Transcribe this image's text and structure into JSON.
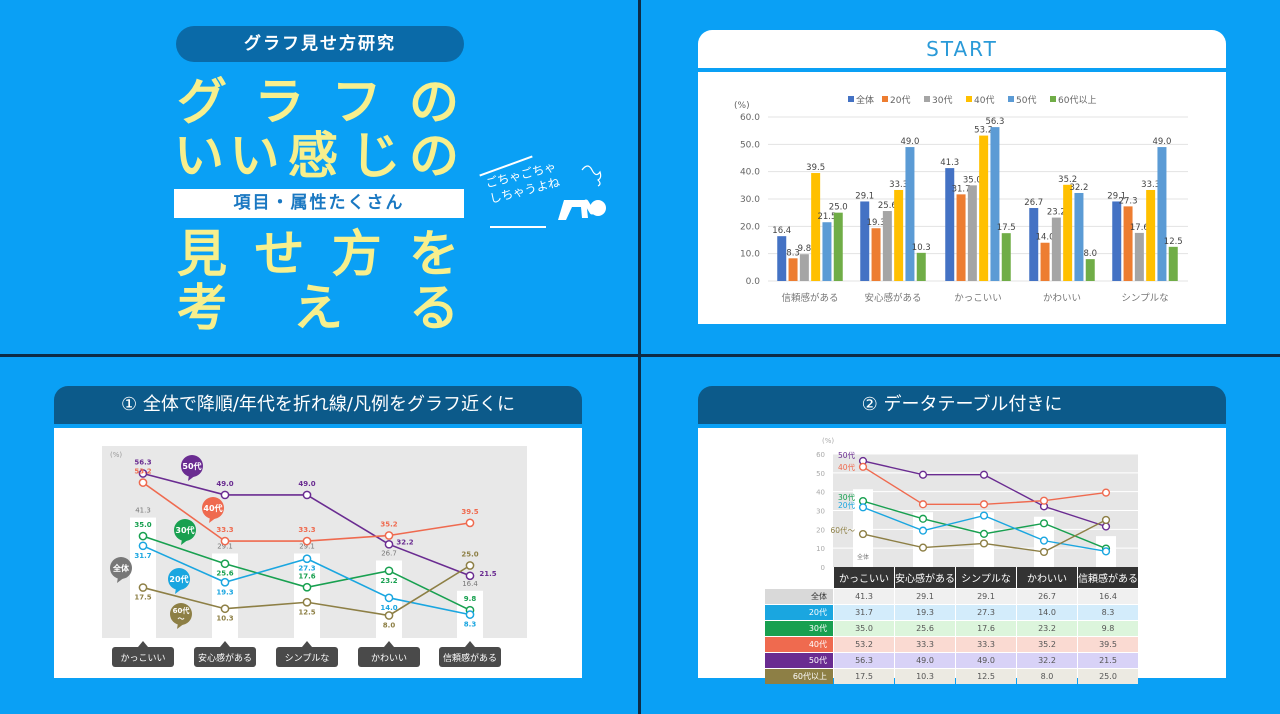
{
  "title_panel": {
    "series_label": "グラフ見せ方研究",
    "headline_lines": [
      [
        "グ",
        "ラ",
        "フ",
        "の"
      ],
      [
        "い",
        "い",
        "感",
        "じ",
        "の"
      ],
      [
        "見",
        "せ",
        "方",
        "を"
      ],
      [
        "考",
        "え",
        "る"
      ]
    ],
    "subtitle": "項目・属性たくさん",
    "aside_line1": "ごちゃごちゃ",
    "aside_line2": "しちゃうよね"
  },
  "start_panel": {
    "header": "START"
  },
  "panel1": {
    "header": "① 全体で降順/年代を折れ線/凡例をグラフ近くに"
  },
  "panel2": {
    "header": "② データテーブル付きに"
  },
  "colors": {
    "background": "#0aa0f5",
    "divider": "#0d2b45",
    "title_yellow": "#f7ef8d",
    "dark_header": "#0c5a8a"
  },
  "chart_data": [
    {
      "type": "bar",
      "title": "START",
      "ylabel": "(%)",
      "ylim": [
        0,
        60
      ],
      "yticks": [
        "0.0",
        "10.0",
        "20.0",
        "30.0",
        "40.0",
        "50.0",
        "60.0"
      ],
      "grid": true,
      "legend_position": "top",
      "categories": [
        "信頼感がある",
        "安心感がある",
        "かっこいい",
        "かわいい",
        "シンプルな"
      ],
      "series": [
        {
          "name": "全体",
          "color": "#4472c4",
          "values": [
            16.4,
            29.1,
            41.3,
            26.7,
            29.1
          ]
        },
        {
          "name": "20代",
          "color": "#ed7d31",
          "values": [
            8.3,
            19.3,
            31.7,
            14.0,
            27.3
          ]
        },
        {
          "name": "30代",
          "color": "#a5a5a5",
          "values": [
            9.8,
            25.6,
            35.0,
            23.2,
            17.6
          ]
        },
        {
          "name": "40代",
          "color": "#ffc000",
          "values": [
            39.5,
            33.3,
            53.2,
            35.2,
            33.3
          ]
        },
        {
          "name": "50代",
          "color": "#5b9bd5",
          "values": [
            21.5,
            49.0,
            56.3,
            32.2,
            49.0
          ]
        },
        {
          "name": "60代以上",
          "color": "#70ad47",
          "values": [
            25.0,
            10.3,
            17.5,
            8.0,
            12.5
          ]
        }
      ]
    },
    {
      "type": "line",
      "title": "① 全体で降順/年代を折れ線/凡例をグラフ近くに",
      "ylabel": "(%)",
      "ylim": [
        0,
        60
      ],
      "categories": [
        "かっこいい",
        "安心感がある",
        "シンプルな",
        "かわいい",
        "信頼感がある"
      ],
      "bar_series": {
        "name": "全体",
        "label": "全体",
        "color": "#777777",
        "values": [
          41.3,
          29.1,
          29.1,
          26.7,
          16.4
        ]
      },
      "series": [
        {
          "name": "50代",
          "label": "50代",
          "color": "#6a2c91",
          "values": [
            56.3,
            49.0,
            49.0,
            32.2,
            21.5
          ]
        },
        {
          "name": "40代",
          "label": "40代",
          "color": "#ef6a4f",
          "values": [
            53.2,
            33.3,
            33.3,
            35.2,
            39.5
          ]
        },
        {
          "name": "30代",
          "label": "30代",
          "color": "#18a050",
          "values": [
            35.0,
            25.6,
            17.6,
            23.2,
            9.8
          ]
        },
        {
          "name": "20代",
          "label": "20代",
          "color": "#1aa6e0",
          "values": [
            31.7,
            19.3,
            27.3,
            14.0,
            8.3
          ]
        },
        {
          "name": "60代以上",
          "label": "60代〜",
          "color": "#8d7f45",
          "values": [
            17.5,
            10.3,
            12.5,
            8.0,
            25.0
          ]
        }
      ]
    },
    {
      "type": "line",
      "title": "② データテーブル付きに",
      "ylabel": "(%)",
      "ylim": [
        0,
        60
      ],
      "yticks": [
        "0",
        "10",
        "20",
        "30",
        "40",
        "50",
        "60"
      ],
      "categories": [
        "かっこいい",
        "安心感がある",
        "シンプルな",
        "かわいい",
        "信頼感がある"
      ],
      "bar_series": {
        "name": "全体",
        "label": "全体",
        "values": [
          41.3,
          29.1,
          29.1,
          26.7,
          16.4
        ]
      },
      "series": [
        {
          "name": "50代",
          "label": "50代",
          "color": "#6a2c91",
          "row_bg": "#d8d2f7",
          "values": [
            56.3,
            49.0,
            49.0,
            32.2,
            21.5
          ]
        },
        {
          "name": "40代",
          "label": "40代",
          "color": "#ef6a4f",
          "row_bg": "#fadad2",
          "values": [
            53.2,
            33.3,
            33.3,
            35.2,
            39.5
          ]
        },
        {
          "name": "30代",
          "label": "30代",
          "color": "#18a050",
          "row_bg": "#dcf5dc",
          "values": [
            35.0,
            25.6,
            17.6,
            23.2,
            9.8
          ]
        },
        {
          "name": "20代",
          "label": "20代",
          "color": "#1aa6e0",
          "row_bg": "#d3ecfb",
          "values": [
            31.7,
            19.3,
            27.3,
            14.0,
            8.3
          ]
        },
        {
          "name": "60代以上",
          "label": "60代〜",
          "color": "#8d7f45",
          "row_bg": "#eceae2",
          "values": [
            17.5,
            10.3,
            12.5,
            8.0,
            25.0
          ]
        }
      ],
      "table": {
        "columns": [
          "かっこいい",
          "安心感がある",
          "シンプルな",
          "かわいい",
          "信頼感がある"
        ],
        "rows": [
          {
            "label": "全体",
            "label_bg": "#d9d9d9",
            "label_color": "#333333",
            "row_bg": "#f0f0f0",
            "values": [
              "41.3",
              "29.1",
              "29.1",
              "26.7",
              "16.4"
            ]
          },
          {
            "label": "20代",
            "label_bg": "#1aa6e0",
            "label_color": "#ffffff",
            "row_bg": "#d3ecfb",
            "values": [
              "31.7",
              "19.3",
              "27.3",
              "14.0",
              "8.3"
            ]
          },
          {
            "label": "30代",
            "label_bg": "#18a050",
            "label_color": "#ffffff",
            "row_bg": "#dcf5dc",
            "values": [
              "35.0",
              "25.6",
              "17.6",
              "23.2",
              "9.8"
            ]
          },
          {
            "label": "40代",
            "label_bg": "#ef6a4f",
            "label_color": "#ffffff",
            "row_bg": "#fadad2",
            "values": [
              "53.2",
              "33.3",
              "33.3",
              "35.2",
              "39.5"
            ]
          },
          {
            "label": "50代",
            "label_bg": "#6a2c91",
            "label_color": "#ffffff",
            "row_bg": "#d8d2f7",
            "values": [
              "56.3",
              "49.0",
              "49.0",
              "32.2",
              "21.5"
            ]
          },
          {
            "label": "60代以上",
            "label_bg": "#8d7f45",
            "label_color": "#ffffff",
            "row_bg": "#eceae2",
            "values": [
              "17.5",
              "10.3",
              "12.5",
              "8.0",
              "25.0"
            ]
          }
        ]
      }
    }
  ]
}
